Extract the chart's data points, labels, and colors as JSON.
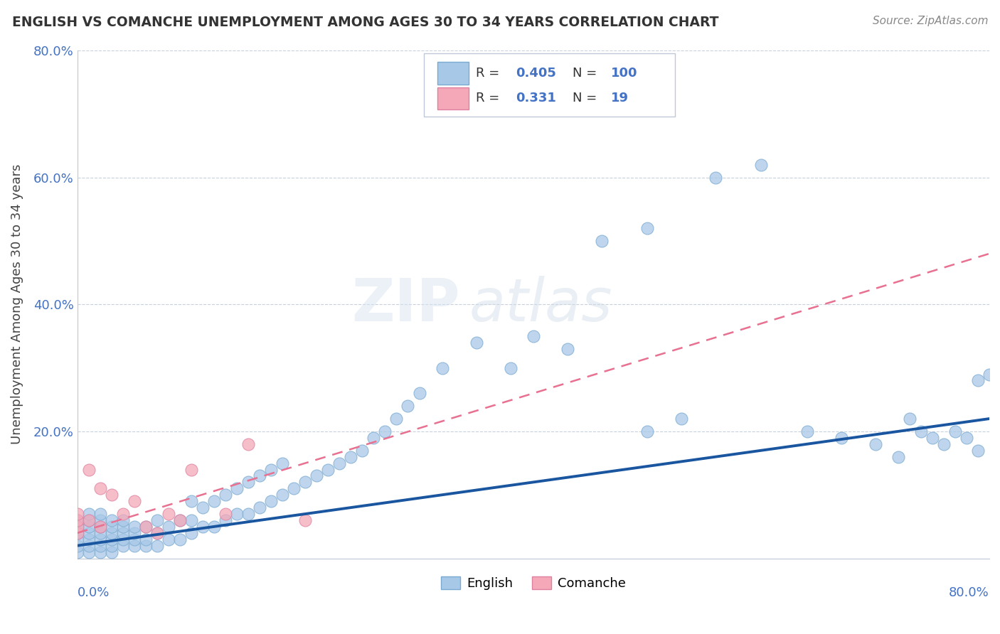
{
  "title": "ENGLISH VS COMANCHE UNEMPLOYMENT AMONG AGES 30 TO 34 YEARS CORRELATION CHART",
  "source": "Source: ZipAtlas.com",
  "ylabel": "Unemployment Among Ages 30 to 34 years",
  "xlim": [
    0,
    0.8
  ],
  "ylim": [
    0,
    0.8
  ],
  "english_R": 0.405,
  "english_N": 100,
  "comanche_R": 0.331,
  "comanche_N": 19,
  "english_color": "#a8c8e8",
  "comanche_color": "#f4a8b8",
  "english_line_color": "#1a56a0",
  "comanche_line_color": "#e87090",
  "background_color": "#ffffff",
  "english_x": [
    0.0,
    0.0,
    0.0,
    0.0,
    0.0,
    0.0,
    0.01,
    0.01,
    0.01,
    0.01,
    0.01,
    0.01,
    0.01,
    0.02,
    0.02,
    0.02,
    0.02,
    0.02,
    0.02,
    0.02,
    0.03,
    0.03,
    0.03,
    0.03,
    0.03,
    0.03,
    0.04,
    0.04,
    0.04,
    0.04,
    0.04,
    0.05,
    0.05,
    0.05,
    0.05,
    0.06,
    0.06,
    0.06,
    0.07,
    0.07,
    0.07,
    0.08,
    0.08,
    0.09,
    0.09,
    0.1,
    0.1,
    0.1,
    0.11,
    0.11,
    0.12,
    0.12,
    0.13,
    0.13,
    0.14,
    0.14,
    0.15,
    0.15,
    0.16,
    0.16,
    0.17,
    0.17,
    0.18,
    0.18,
    0.19,
    0.2,
    0.21,
    0.22,
    0.23,
    0.24,
    0.25,
    0.26,
    0.27,
    0.28,
    0.29,
    0.3,
    0.32,
    0.35,
    0.38,
    0.4,
    0.43,
    0.46,
    0.5,
    0.5,
    0.53,
    0.56,
    0.6,
    0.64,
    0.67,
    0.7,
    0.72,
    0.73,
    0.74,
    0.75,
    0.76,
    0.77,
    0.78,
    0.79,
    0.79,
    0.8
  ],
  "english_y": [
    0.01,
    0.02,
    0.03,
    0.04,
    0.05,
    0.06,
    0.01,
    0.02,
    0.03,
    0.04,
    0.05,
    0.06,
    0.07,
    0.01,
    0.02,
    0.03,
    0.04,
    0.05,
    0.06,
    0.07,
    0.01,
    0.02,
    0.03,
    0.04,
    0.05,
    0.06,
    0.02,
    0.03,
    0.04,
    0.05,
    0.06,
    0.02,
    0.03,
    0.04,
    0.05,
    0.02,
    0.03,
    0.05,
    0.02,
    0.04,
    0.06,
    0.03,
    0.05,
    0.03,
    0.06,
    0.04,
    0.06,
    0.09,
    0.05,
    0.08,
    0.05,
    0.09,
    0.06,
    0.1,
    0.07,
    0.11,
    0.07,
    0.12,
    0.08,
    0.13,
    0.09,
    0.14,
    0.1,
    0.15,
    0.11,
    0.12,
    0.13,
    0.14,
    0.15,
    0.16,
    0.17,
    0.19,
    0.2,
    0.22,
    0.24,
    0.26,
    0.3,
    0.34,
    0.3,
    0.35,
    0.33,
    0.5,
    0.52,
    0.2,
    0.22,
    0.6,
    0.62,
    0.2,
    0.19,
    0.18,
    0.16,
    0.22,
    0.2,
    0.19,
    0.18,
    0.2,
    0.19,
    0.17,
    0.28,
    0.29
  ],
  "comanche_x": [
    0.0,
    0.0,
    0.0,
    0.0,
    0.01,
    0.01,
    0.02,
    0.02,
    0.03,
    0.04,
    0.05,
    0.06,
    0.07,
    0.08,
    0.09,
    0.1,
    0.13,
    0.15,
    0.2
  ],
  "comanche_y": [
    0.04,
    0.05,
    0.06,
    0.07,
    0.06,
    0.14,
    0.05,
    0.11,
    0.1,
    0.07,
    0.09,
    0.05,
    0.04,
    0.07,
    0.06,
    0.14,
    0.07,
    0.18,
    0.06
  ],
  "eng_line_x0": 0.0,
  "eng_line_y0": 0.02,
  "eng_line_x1": 0.8,
  "eng_line_y1": 0.22,
  "com_line_x0": 0.0,
  "com_line_y0": 0.04,
  "com_line_x1": 0.8,
  "com_line_y1": 0.48
}
